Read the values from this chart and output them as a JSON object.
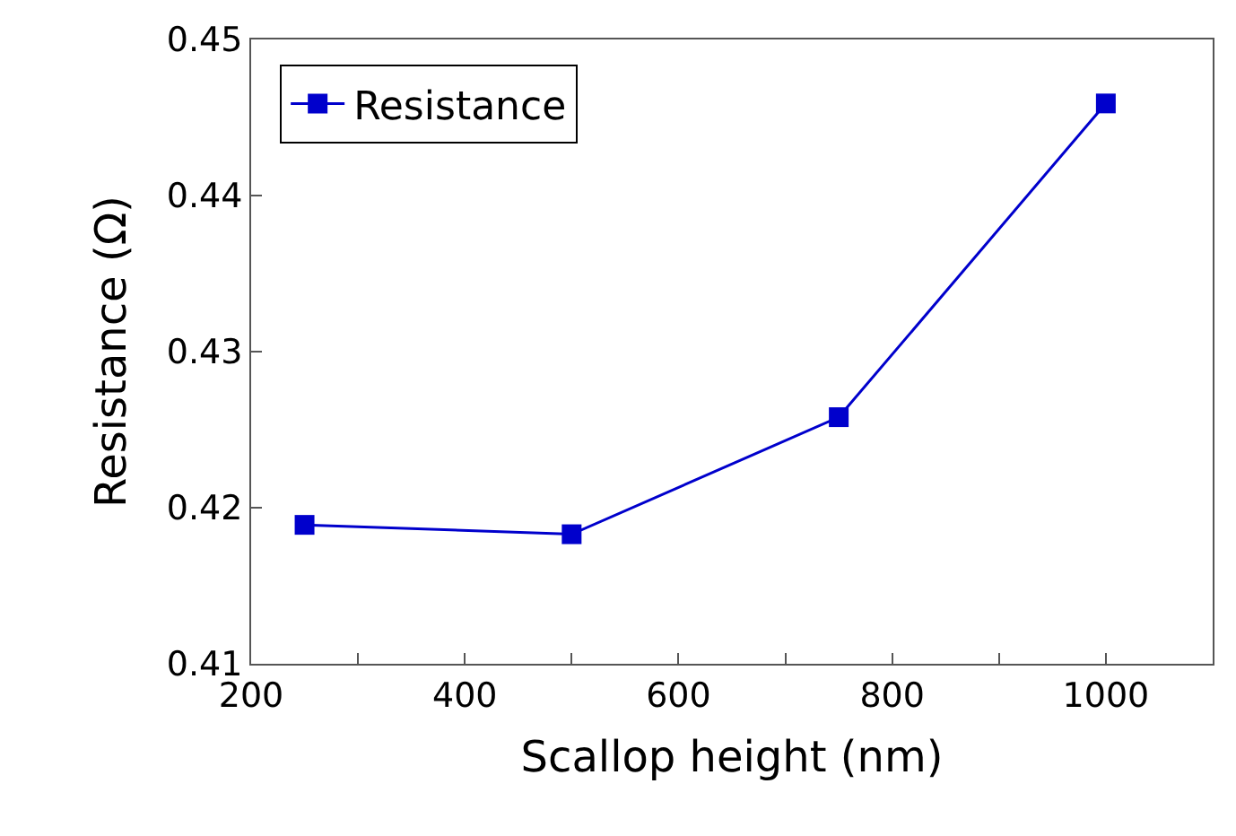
{
  "chart_data": {
    "type": "line",
    "xlabel": "Scallop height (nm)",
    "ylabel": "Resistance (Ω)",
    "x": [
      250,
      500,
      750,
      1000
    ],
    "series": [
      {
        "name": "Resistance",
        "color": "#0000cc",
        "values": [
          0.4189,
          0.4183,
          0.4258,
          0.4459
        ]
      }
    ],
    "xlim": [
      200,
      1100
    ],
    "xticks": [
      200,
      {
        "value": 300,
        "label": null
      },
      400,
      {
        "value": 500,
        "label": null
      },
      600,
      {
        "value": 700,
        "label": null
      },
      800,
      {
        "value": 900,
        "label": null
      },
      1000,
      {
        "value": 1100,
        "label": null
      }
    ],
    "ylim": [
      0.41,
      0.45
    ],
    "yticks": [
      0.41,
      0.42,
      0.43,
      0.44,
      0.45
    ],
    "legend": "top left",
    "marker": "square",
    "line_style": "solid"
  }
}
